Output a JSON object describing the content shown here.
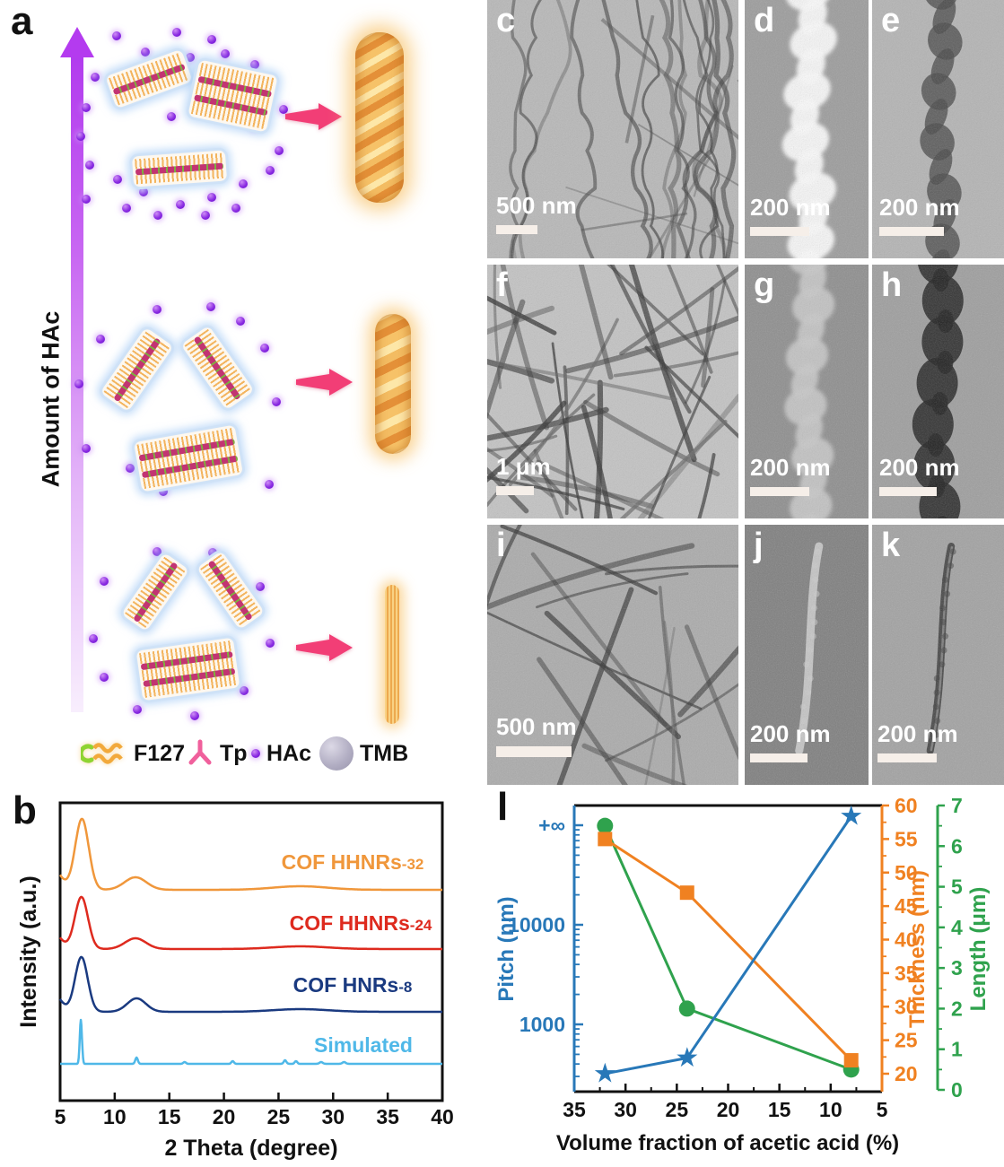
{
  "figure": {
    "panel_a": {
      "label": "a",
      "axis_arrow_label": "Amount of HAc",
      "legend": [
        {
          "icon": "f127-micelle-icon",
          "name": "F127"
        },
        {
          "icon": "tp-linker-icon",
          "name": "Tp"
        },
        {
          "icon": "hac-dot-icon",
          "name": "HAc"
        },
        {
          "icon": "tmb-sphere-icon",
          "name": "TMB"
        }
      ]
    },
    "micrographs": [
      {
        "label": "c",
        "scale_bar": "500 nm"
      },
      {
        "label": "d",
        "scale_bar": "200 nm"
      },
      {
        "label": "e",
        "scale_bar": "200 nm"
      },
      {
        "label": "f",
        "scale_bar": "1 μm"
      },
      {
        "label": "g",
        "scale_bar": "200 nm"
      },
      {
        "label": "h",
        "scale_bar": "200 nm"
      },
      {
        "label": "i",
        "scale_bar": "500 nm"
      },
      {
        "label": "j",
        "scale_bar": "200 nm"
      },
      {
        "label": "k",
        "scale_bar": "200 nm"
      }
    ],
    "panel_b_label": "b",
    "panel_l_label": "l"
  },
  "chart_data": [
    {
      "type": "line",
      "panel": "b",
      "xlabel": "2 Theta (degree)",
      "ylabel": "Intensity (a.u.)",
      "xlim": [
        5,
        40
      ],
      "xticks": [
        5,
        10,
        15,
        20,
        25,
        30,
        35,
        40
      ],
      "grid": false,
      "legend_position": "inline-right",
      "series": [
        {
          "label_main": "COF HHNRs",
          "label_sub": "-32",
          "color": "#F0973B",
          "baseline": 992,
          "peaks": [
            [
              4.0,
              30,
              0.9
            ],
            [
              7.0,
              79,
              0.62
            ],
            [
              11.9,
              14,
              1.0
            ],
            [
              27.0,
              4,
              2.5
            ]
          ]
        },
        {
          "label_main": "COF HHNRs",
          "label_sub": "-24",
          "color": "#DE2A1E",
          "baseline": 1058,
          "peaks": [
            [
              4.0,
              25,
              0.85
            ],
            [
              6.95,
              58,
              0.6
            ],
            [
              11.9,
              12,
              0.95
            ],
            [
              27.0,
              3,
              2.5
            ]
          ]
        },
        {
          "label_main": "COF  HNRs",
          "label_sub": "-8",
          "color": "#1A3A80",
          "baseline": 1128,
          "peaks": [
            [
              4.0,
              28,
              0.85
            ],
            [
              6.95,
              61,
              0.58
            ],
            [
              12.0,
              15,
              0.85
            ],
            [
              27.0,
              3,
              2.5
            ]
          ]
        },
        {
          "label_main": "Simulated",
          "label_sub": "",
          "color": "#4FB8E8",
          "baseline": 1186,
          "peaks": [
            [
              6.9,
              49,
              0.1
            ],
            [
              12.0,
              7,
              0.12
            ],
            [
              16.4,
              2,
              0.12
            ],
            [
              20.8,
              3,
              0.12
            ],
            [
              25.6,
              4,
              0.12
            ],
            [
              26.6,
              3,
              0.12
            ],
            [
              28.9,
              2,
              0.15
            ],
            [
              31.0,
              2,
              0.15
            ]
          ]
        }
      ],
      "note": "PXRD patterns, curves vertically offset; main peak ~7 deg, secondary ~12 deg"
    },
    {
      "type": "line-multi-axis",
      "panel": "l",
      "xlabel": "Volume fraction of acetic acid (%)",
      "x_reversed": true,
      "xlim": [
        35,
        5
      ],
      "xticks": [
        35,
        30,
        25,
        20,
        15,
        10,
        5
      ],
      "x": [
        32,
        24,
        8
      ],
      "series": [
        {
          "name": "Pitch",
          "axis_label": "Pitch (nm)",
          "unit": "nm",
          "color": "#2878B8",
          "marker": "star",
          "scale": "log",
          "axis_ticks": [
            "+∞",
            "10000",
            "1000"
          ],
          "values": [
            320,
            460,
            "+inf"
          ]
        },
        {
          "name": "Thickness",
          "axis_label": "Thickness (nm)",
          "unit": "nm",
          "color": "#F08121",
          "marker": "square",
          "ylim": [
            20,
            60
          ],
          "tick_step": 5,
          "values": [
            55,
            47,
            22
          ]
        },
        {
          "name": "Length",
          "axis_label": "Length (μm)",
          "unit": "μm",
          "color": "#2FA24D",
          "marker": "circle",
          "ylim": [
            0,
            7
          ],
          "tick_step": 1,
          "values": [
            6.5,
            2.0,
            0.5
          ]
        }
      ]
    }
  ]
}
